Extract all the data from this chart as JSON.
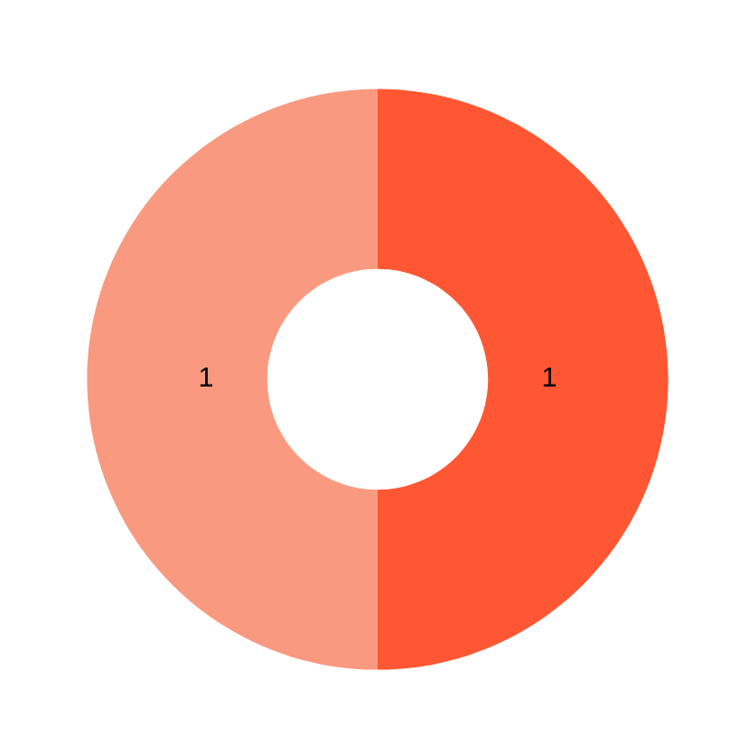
{
  "chart_data": {
    "type": "donut",
    "categories": [
      null,
      null
    ],
    "values": [
      1,
      1
    ],
    "colors": [
      "#ff5733",
      "#f99a80"
    ],
    "data_labels": true
  }
}
